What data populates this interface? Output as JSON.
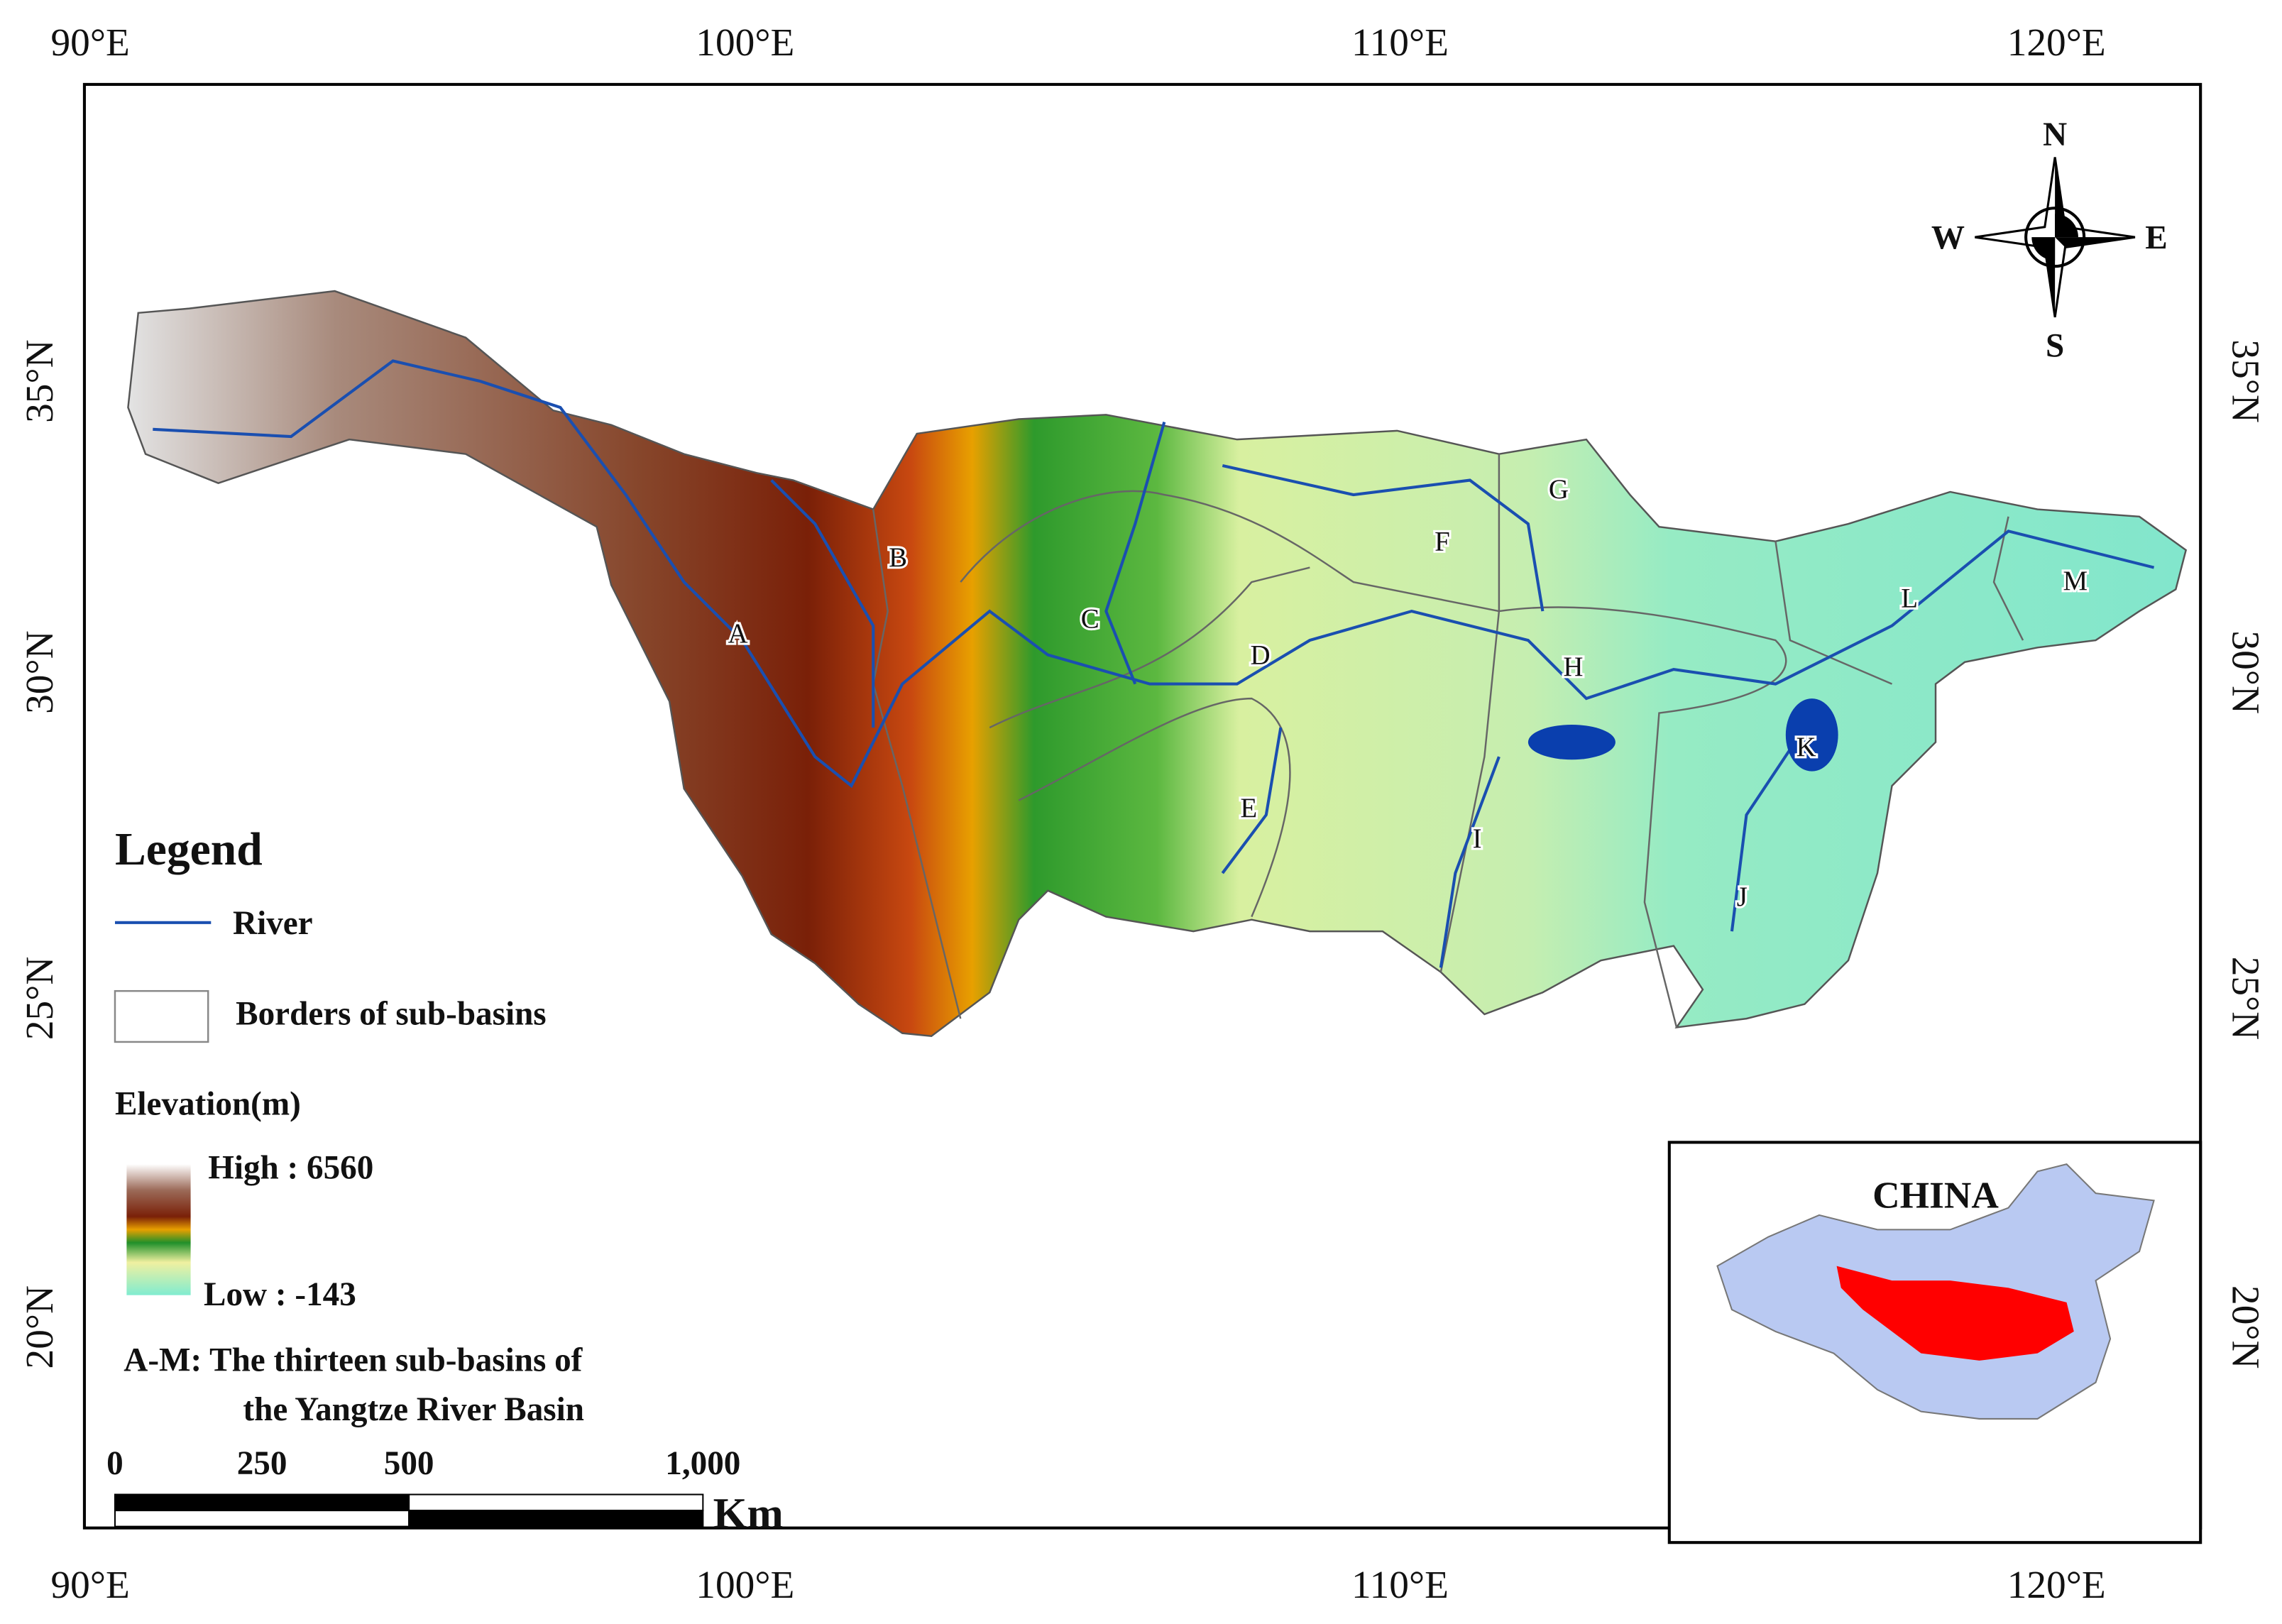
{
  "graticule": {
    "longitudes": [
      "90°E",
      "100°E",
      "110°E",
      "120°E"
    ],
    "latitudes": [
      "35°N",
      "30°N",
      "25°N",
      "20°N"
    ]
  },
  "compass": {
    "north": "N",
    "south": "S",
    "east": "E",
    "west": "W"
  },
  "sub_basins": [
    "A",
    "B",
    "C",
    "D",
    "E",
    "F",
    "G",
    "H",
    "I",
    "J",
    "K",
    "L",
    "M"
  ],
  "legend": {
    "title": "Legend",
    "river": "River",
    "borders": "Borders of sub-basins",
    "elevation_title": "Elevation(m)",
    "high": "High : 6560",
    "low": "Low : -143",
    "note_line1": "A-M: The thirteen sub-basins of",
    "note_line2": "the Yangtze River Basin"
  },
  "scale_bar": {
    "labels": [
      "0",
      "250",
      "500",
      "1,000"
    ],
    "unit": "Km"
  },
  "inset": {
    "title": "CHINA"
  }
}
